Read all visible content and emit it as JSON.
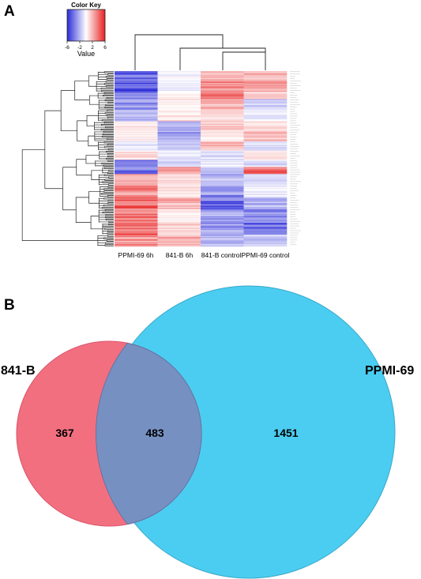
{
  "panels": {
    "a_label": "A",
    "b_label": "B"
  },
  "chart_data": [
    {
      "type": "heatmap",
      "color_key": {
        "title": "Color Key",
        "label": "Value",
        "ticks": [
          "-6",
          "-2",
          "2",
          "6"
        ],
        "range": [
          -6,
          6
        ],
        "low_color": "#2b2bd9",
        "mid_color": "#ffffff",
        "high_color": "#e82020"
      },
      "columns": [
        "PPMI-69 6h",
        "841-B 6h",
        "841-B control",
        "PPMI-69 control"
      ],
      "row_count": 150,
      "column_dendrogram": "(PPMI-69 6h, (841-B 6h, (841-B control, PPMI-69 control)))",
      "row_clusters": [
        {
          "rows": 8,
          "values": [
            -4.5,
            -0.3,
            2.2,
            1.8
          ]
        },
        {
          "rows": 10,
          "values": [
            -5.0,
            -0.5,
            3.0,
            2.5
          ]
        },
        {
          "rows": 6,
          "values": [
            -3.5,
            0.2,
            4.0,
            1.0
          ]
        },
        {
          "rows": 9,
          "values": [
            -3.0,
            0.5,
            2.0,
            -1.5
          ]
        },
        {
          "rows": 10,
          "values": [
            -2.0,
            0.8,
            0.8,
            -0.5
          ]
        },
        {
          "rows": 8,
          "values": [
            1.0,
            -2.0,
            1.5,
            1.0
          ]
        },
        {
          "rows": 9,
          "values": [
            0.5,
            -2.5,
            0.5,
            2.0
          ]
        },
        {
          "rows": 8,
          "values": [
            -0.5,
            -1.5,
            1.8,
            -0.8
          ]
        },
        {
          "rows": 8,
          "values": [
            0.8,
            -0.5,
            -0.8,
            0.5
          ]
        },
        {
          "rows": 6,
          "values": [
            -3.5,
            -1.0,
            -0.5,
            -1.0
          ]
        },
        {
          "rows": 6,
          "values": [
            -4.0,
            2.5,
            -1.5,
            4.0
          ]
        },
        {
          "rows": 10,
          "values": [
            2.0,
            1.0,
            -2.0,
            -0.8
          ]
        },
        {
          "rows": 10,
          "values": [
            3.0,
            0.6,
            -3.0,
            -0.5
          ]
        },
        {
          "rows": 10,
          "values": [
            4.0,
            2.0,
            -4.0,
            -2.0
          ]
        },
        {
          "rows": 12,
          "values": [
            3.5,
            0.5,
            -2.5,
            -3.0
          ]
        },
        {
          "rows": 10,
          "values": [
            4.0,
            1.2,
            -3.0,
            -4.5
          ]
        },
        {
          "rows": 10,
          "values": [
            3.0,
            2.0,
            -2.0,
            -1.5
          ]
        }
      ]
    },
    {
      "type": "venn",
      "sets": [
        {
          "name": "841-B",
          "color": "#f26f80"
        },
        {
          "name": "PPMI-69",
          "color": "#4bcdf1"
        }
      ],
      "only_841_B": 367,
      "intersection": 483,
      "only_PPMI_69": 1451,
      "overlap_color": "#7690c2"
    }
  ]
}
